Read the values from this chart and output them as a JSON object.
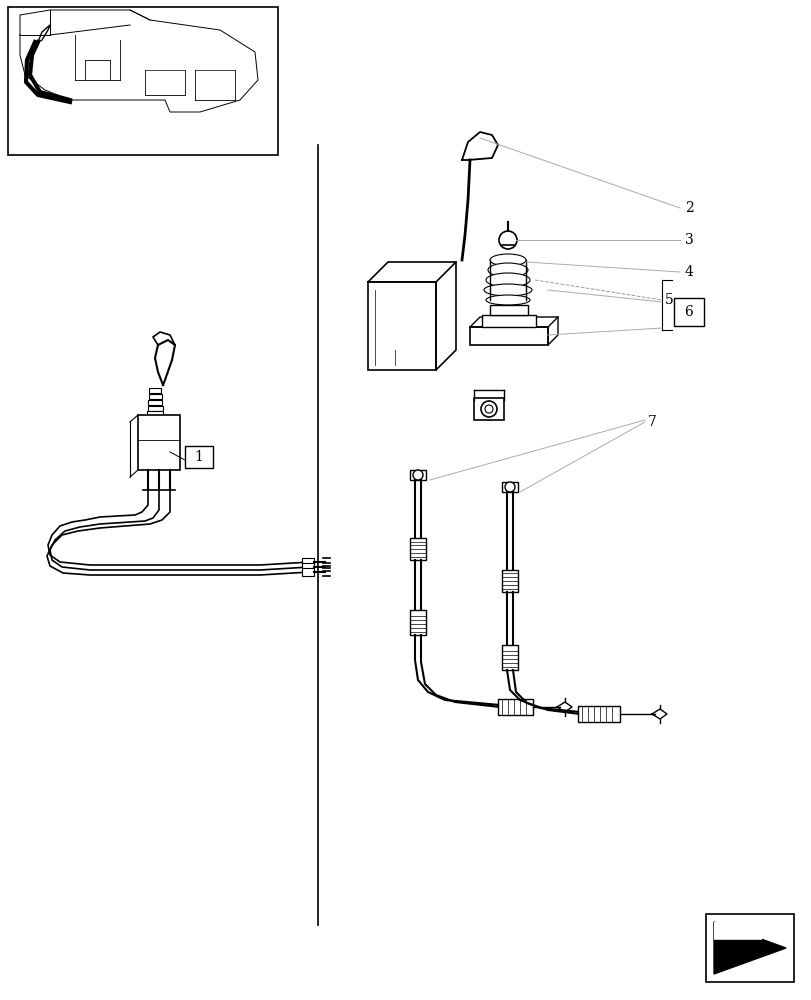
{
  "bg_color": "#ffffff",
  "lc": "#000000",
  "llc": "#aaaaaa",
  "dlc": "#999999",
  "fig_width": 8.12,
  "fig_height": 10.0,
  "dpi": 100,
  "xlim": [
    0,
    812
  ],
  "ylim": [
    0,
    1000
  ]
}
